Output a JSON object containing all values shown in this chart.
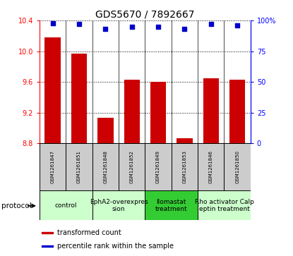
{
  "title": "GDS5670 / 7892667",
  "samples": [
    "GSM1261847",
    "GSM1261851",
    "GSM1261848",
    "GSM1261852",
    "GSM1261849",
    "GSM1261853",
    "GSM1261846",
    "GSM1261850"
  ],
  "transformed_counts": [
    10.18,
    9.97,
    9.13,
    9.63,
    9.6,
    8.87,
    9.65,
    9.63
  ],
  "percentile_ranks": [
    98,
    97,
    93,
    95,
    95,
    93,
    97,
    96
  ],
  "ylim_left": [
    8.8,
    10.4
  ],
  "ylim_right": [
    0,
    100
  ],
  "yticks_left": [
    8.8,
    9.2,
    9.6,
    10.0,
    10.4
  ],
  "yticks_right": [
    0,
    25,
    50,
    75,
    100
  ],
  "ytick_labels_right": [
    "0",
    "25",
    "50",
    "75",
    "100%"
  ],
  "protocols": [
    {
      "label": "control",
      "span": [
        0,
        2
      ],
      "color": "#ccffcc"
    },
    {
      "label": "EphA2-overexpres\nsion",
      "span": [
        2,
        4
      ],
      "color": "#ccffcc"
    },
    {
      "label": "Ilomastat\ntreatment",
      "span": [
        4,
        6
      ],
      "color": "#33cc33"
    },
    {
      "label": "Rho activator Calp\neptin treatment",
      "span": [
        6,
        8
      ],
      "color": "#ccffcc"
    }
  ],
  "bar_color": "#cc0000",
  "dot_color": "#0000cc",
  "sample_box_color": "#cccccc",
  "bar_width": 0.6,
  "protocol_label": "protocol",
  "legend_items": [
    {
      "color": "#cc0000",
      "label": "transformed count"
    },
    {
      "color": "#0000cc",
      "label": "percentile rank within the sample"
    }
  ],
  "title_fontsize": 10,
  "tick_fontsize": 7,
  "sample_fontsize": 5,
  "protocol_fontsize": 6.5
}
